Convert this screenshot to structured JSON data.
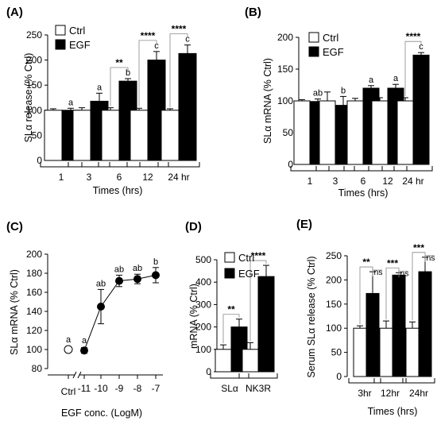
{
  "chart_data": [
    {
      "panel": "(A)",
      "type": "bar",
      "ylabel": "SLα release (% Ctrl)",
      "xlabel": "Times (hrs)",
      "ylim": [
        0,
        250
      ],
      "yticks": [
        0,
        50,
        100,
        150,
        200,
        250
      ],
      "categories": [
        "1",
        "3",
        "6",
        "12",
        "24 hr"
      ],
      "legend": [
        "Ctrl",
        "EGF"
      ],
      "series": [
        {
          "name": "Ctrl",
          "color": "#ffffff",
          "values": [
            100,
            100,
            100,
            100,
            100
          ],
          "errors": [
            3,
            5,
            5,
            4,
            3
          ]
        },
        {
          "name": "EGF",
          "color": "#000000",
          "values": [
            100,
            118,
            158,
            200,
            213
          ],
          "errors": [
            4,
            16,
            5,
            17,
            17
          ]
        }
      ],
      "letters": [
        "a",
        "a",
        "b",
        "c",
        "c"
      ],
      "significance": [
        "",
        "",
        "**",
        "****",
        "****"
      ]
    },
    {
      "panel": "(B)",
      "type": "bar",
      "ylabel": "SLα mRNA (% Ctrl)",
      "xlabel": "Times (hrs)",
      "ylim": [
        0,
        200
      ],
      "yticks": [
        0,
        50,
        100,
        150,
        200
      ],
      "categories": [
        "1",
        "3",
        "6",
        "12",
        "24 hr"
      ],
      "legend": [
        "Ctrl",
        "EGF"
      ],
      "series": [
        {
          "name": "Ctrl",
          "color": "#ffffff",
          "values": [
            100,
            100,
            100,
            100,
            100
          ],
          "errors": [
            2,
            14,
            4,
            5,
            5
          ]
        },
        {
          "name": "EGF",
          "color": "#000000",
          "values": [
            99,
            93,
            120,
            120,
            172
          ],
          "errors": [
            4,
            14,
            4,
            6,
            4
          ]
        }
      ],
      "letters": [
        "ab",
        "b",
        "a",
        "a",
        "c"
      ],
      "significance": [
        "",
        "",
        "",
        "",
        "****"
      ]
    },
    {
      "panel": "(C)",
      "type": "line",
      "ylabel": "SLα mRNA (% Ctrl)",
      "xlabel": "EGF conc. (LogM)",
      "ylim": [
        80,
        200
      ],
      "yticks": [
        80,
        100,
        120,
        140,
        160,
        180,
        200
      ],
      "xticks": [
        "Ctrl",
        "-11",
        "-10",
        "-9",
        "-8",
        "-7"
      ],
      "ctrl_point": {
        "x": "Ctrl",
        "y": 100,
        "error": 3,
        "letter": "a"
      },
      "x": [
        -11,
        -10,
        -9,
        -8,
        -7
      ],
      "y": [
        99,
        145,
        172,
        174,
        178
      ],
      "errors": [
        3,
        18,
        6,
        5,
        8
      ],
      "letters": [
        "a",
        "ab",
        "ab",
        "ab",
        "b"
      ]
    },
    {
      "panel": "(D)",
      "type": "bar",
      "ylabel": "mRNA  (% Ctrl)",
      "ylim": [
        0,
        500
      ],
      "yticks": [
        0,
        100,
        200,
        300,
        400,
        500
      ],
      "categories": [
        "SLα",
        "NK3R"
      ],
      "legend": [
        "Ctrl",
        "EGF"
      ],
      "series": [
        {
          "name": "Ctrl",
          "color": "#ffffff",
          "values": [
            100,
            100
          ],
          "errors": [
            20,
            30
          ]
        },
        {
          "name": "EGF",
          "color": "#000000",
          "values": [
            200,
            425
          ],
          "errors": [
            35,
            50
          ]
        }
      ],
      "significance": [
        "**",
        "****"
      ]
    },
    {
      "panel": "(E)",
      "type": "bar",
      "ylabel": "Serum SLα release (% Ctrl)",
      "xlabel": "Times (hrs)",
      "ylim": [
        0,
        250
      ],
      "yticks": [
        0,
        50,
        100,
        150,
        200,
        250
      ],
      "categories": [
        "3hr",
        "12hr",
        "24hr"
      ],
      "series": [
        {
          "name": "Ctrl",
          "color": "#ffffff",
          "values": [
            100,
            100,
            100
          ],
          "errors": [
            5,
            15,
            13
          ]
        },
        {
          "name": "EGF",
          "color": "#000000",
          "values": [
            172,
            210,
            217
          ],
          "errors": [
            45,
            5,
            30
          ]
        }
      ],
      "significance": [
        "**",
        "***",
        "***"
      ],
      "significance2": [
        "ns",
        "ns",
        "ns"
      ]
    }
  ]
}
